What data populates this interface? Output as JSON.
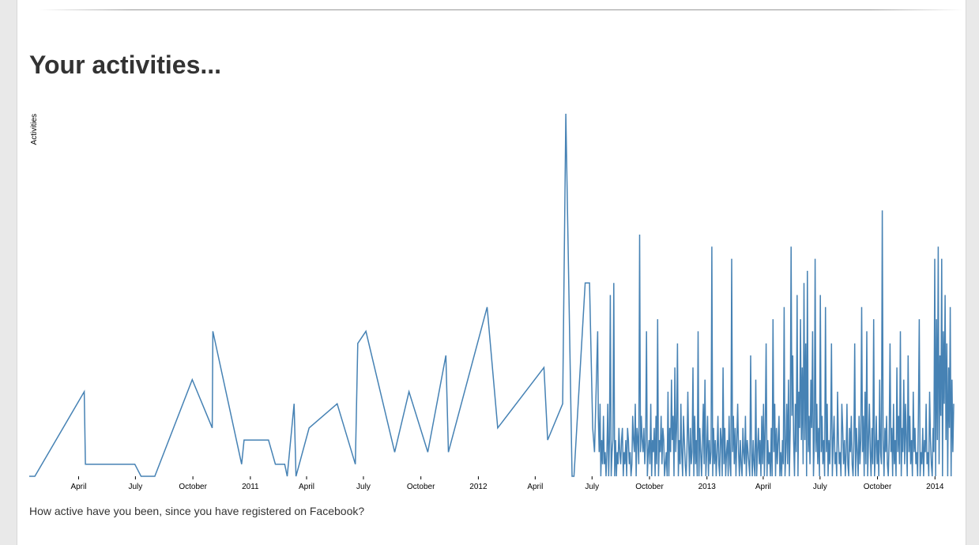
{
  "page": {
    "title": "Your activities...",
    "caption": "How active have you been, since you have registered on Facebook?"
  },
  "chart_data": {
    "type": "line",
    "title": "Your activities...",
    "ylabel": "Activities",
    "xlabel": "",
    "color": "#4682b4",
    "x_range": [
      "2010-01-12",
      "2014-01-31"
    ],
    "ylim": [
      0,
      30
    ],
    "grid": false,
    "tick_labels": [
      "April",
      "July",
      "October",
      "2011",
      "April",
      "July",
      "October",
      "2012",
      "April",
      "July",
      "October",
      "2013",
      "April",
      "July",
      "October",
      "2014"
    ],
    "tick_dates": [
      "2010-04-01",
      "2010-07-01",
      "2010-10-01",
      "2011-01-01",
      "2011-04-01",
      "2011-07-01",
      "2011-10-01",
      "2012-01-01",
      "2012-04-01",
      "2012-07-01",
      "2012-10-01",
      "2013-01-01",
      "2013-04-01",
      "2013-07-01",
      "2013-10-01",
      "2014-01-01"
    ],
    "series_head": {
      "name": "Activities",
      "points": [
        [
          "2010-01-12",
          0
        ],
        [
          "2010-01-21",
          0
        ],
        [
          "2010-04-10",
          7
        ],
        [
          "2010-04-12",
          1
        ],
        [
          "2010-06-30",
          1
        ],
        [
          "2010-07-10",
          0
        ],
        [
          "2010-08-01",
          0
        ],
        [
          "2010-09-30",
          8
        ],
        [
          "2010-11-01",
          4
        ],
        [
          "2010-11-02",
          12
        ],
        [
          "2010-12-18",
          1
        ],
        [
          "2010-12-22",
          3
        ],
        [
          "2011-01-30",
          3
        ],
        [
          "2011-02-10",
          1
        ],
        [
          "2011-02-25",
          1
        ],
        [
          "2011-03-01",
          0
        ],
        [
          "2011-03-12",
          6
        ],
        [
          "2011-03-15",
          0
        ],
        [
          "2011-04-05",
          4
        ],
        [
          "2011-05-20",
          6
        ],
        [
          "2011-06-18",
          1
        ],
        [
          "2011-06-22",
          11
        ],
        [
          "2011-07-05",
          12
        ],
        [
          "2011-08-20",
          2
        ],
        [
          "2011-09-12",
          7
        ],
        [
          "2011-10-12",
          2
        ],
        [
          "2011-11-10",
          10
        ],
        [
          "2011-11-14",
          2
        ],
        [
          "2012-01-15",
          14
        ],
        [
          "2012-02-01",
          4
        ],
        [
          "2012-04-15",
          9
        ],
        [
          "2012-04-21",
          3
        ],
        [
          "2012-05-15",
          6
        ],
        [
          "2012-05-20",
          30
        ],
        [
          "2012-05-30",
          0
        ],
        [
          "2012-06-02",
          0
        ],
        [
          "2012-06-20",
          16
        ],
        [
          "2012-06-27",
          16
        ],
        [
          "2012-07-02",
          4
        ],
        [
          "2012-07-05",
          2
        ],
        [
          "2012-07-10",
          12
        ]
      ]
    },
    "series_tail": {
      "name": "Activities",
      "start_date": "2012-07-11",
      "end_date": "2014-01-31",
      "values": [
        5,
        2,
        6,
        0,
        3,
        1,
        5,
        1,
        2,
        0,
        2,
        6,
        0,
        3,
        15,
        0,
        2,
        3,
        16,
        0,
        3,
        0,
        2,
        1,
        4,
        2,
        1,
        3,
        4,
        0,
        2,
        1,
        3,
        0,
        4,
        3,
        1,
        2,
        0,
        1,
        5,
        3,
        2,
        6,
        0,
        4,
        3,
        1,
        20,
        2,
        5,
        3,
        2,
        4,
        1,
        3,
        12,
        0,
        2,
        3,
        1,
        6,
        0,
        3,
        2,
        4,
        0,
        5,
        1,
        13,
        0,
        3,
        2,
        5,
        1,
        4,
        3,
        0,
        1,
        2,
        0,
        7,
        0,
        4,
        2,
        8,
        3,
        5,
        0,
        9,
        2,
        4,
        11,
        0,
        3,
        1,
        6,
        2,
        0,
        5,
        3,
        1,
        0,
        2,
        7,
        3,
        0,
        4,
        1,
        2,
        9,
        0,
        5,
        1,
        3,
        0,
        12,
        0,
        4,
        2,
        0,
        3,
        6,
        1,
        8,
        0,
        2,
        5,
        0,
        3,
        1,
        2,
        19,
        0,
        4,
        1,
        3,
        0,
        2,
        5,
        1,
        0,
        4,
        3,
        0,
        9,
        1,
        4,
        0,
        2,
        3,
        0,
        5,
        1,
        0,
        18,
        2,
        5,
        1,
        4,
        0,
        3,
        6,
        2,
        0,
        3,
        1,
        0,
        4,
        2,
        1,
        5,
        0,
        3,
        2,
        1,
        0,
        10,
        2,
        0,
        3,
        1,
        0,
        8,
        0,
        2,
        4,
        1,
        3,
        0,
        5,
        1,
        6,
        0,
        4,
        11,
        0,
        3,
        1,
        2,
        0,
        4,
        0,
        13,
        2,
        6,
        0,
        4,
        1,
        3,
        5,
        0,
        2,
        0,
        3,
        1,
        14,
        0,
        2,
        6,
        1,
        8,
        0,
        4,
        19,
        5,
        10,
        3,
        0,
        6,
        2,
        15,
        0,
        7,
        4,
        13,
        3,
        9,
        1,
        16,
        3,
        11,
        0,
        17,
        2,
        5,
        1,
        8,
        4,
        12,
        0,
        3,
        18,
        2,
        6,
        1,
        4,
        0,
        15,
        2,
        5,
        1,
        3,
        0,
        14,
        2,
        6,
        0,
        3,
        1,
        4,
        11,
        0,
        3,
        5,
        1,
        2,
        0,
        7,
        3,
        1,
        2,
        0,
        6,
        4,
        1,
        3,
        0,
        2,
        6,
        1,
        0,
        4,
        2,
        5,
        1,
        0,
        3,
        11,
        0,
        4,
        2,
        0,
        5,
        1,
        3,
        14,
        2,
        5,
        0,
        7,
        1,
        12,
        0,
        3,
        6,
        2,
        0,
        4,
        1,
        13,
        0,
        2,
        5,
        1,
        3,
        0,
        8,
        2,
        1,
        22,
        3,
        0,
        4,
        2,
        5,
        1,
        0,
        3,
        11,
        2,
        4,
        0,
        6,
        1,
        3,
        0,
        9,
        2,
        5,
        1,
        12,
        0,
        4,
        2,
        8,
        1,
        6,
        3,
        0,
        10,
        2,
        5,
        1,
        3,
        0,
        7,
        2,
        4,
        1,
        2,
        0,
        5,
        13,
        0,
        2,
        1,
        4,
        0,
        3,
        2,
        6,
        1,
        2,
        0,
        7,
        3,
        1,
        0,
        4,
        2,
        18,
        0,
        13,
        3,
        19,
        1,
        10,
        5,
        18,
        0,
        12,
        6,
        15,
        3,
        11,
        0,
        9,
        4,
        14,
        0,
        8,
        2,
        6
      ]
    }
  }
}
